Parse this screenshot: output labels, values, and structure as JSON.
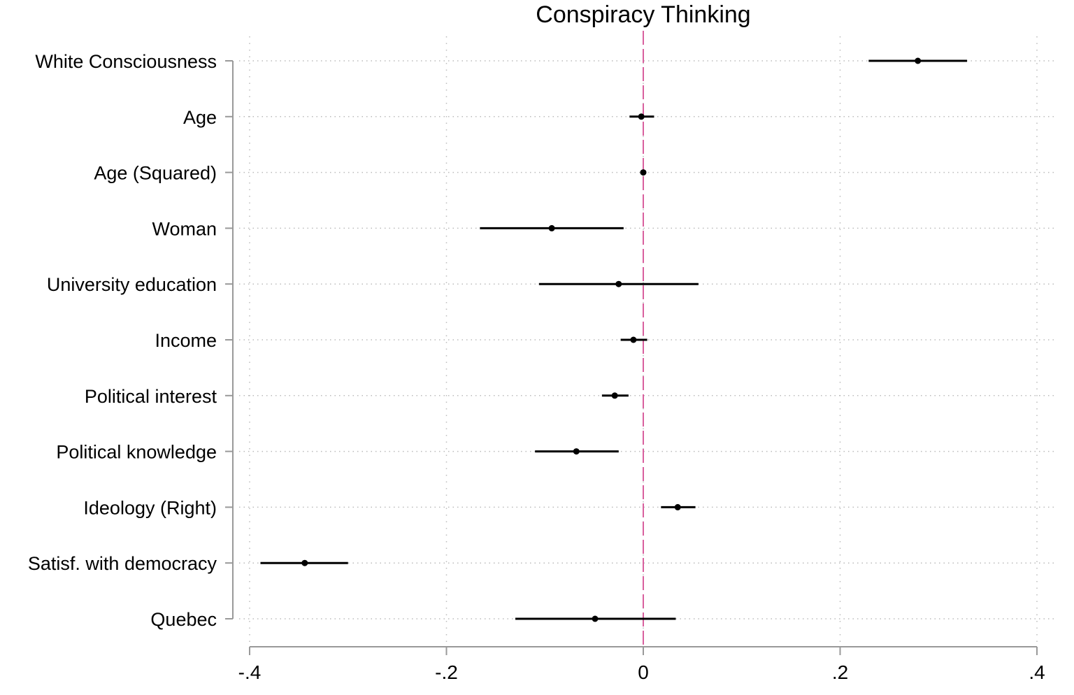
{
  "chart_data": {
    "type": "coefficient-plot",
    "title": "Conspiracy Thinking",
    "xlabel": "",
    "ylabel": "",
    "xlim": [
      -0.4,
      0.4
    ],
    "xticks": [
      -0.4,
      -0.2,
      0,
      0.2,
      0.4
    ],
    "xtick_labels": [
      "-.4",
      "-.2",
      "0",
      ".2",
      ".4"
    ],
    "grid": true,
    "reference_line": {
      "x": 0,
      "color": "#d9609e",
      "style": "dashed"
    },
    "marker_color": "#000000",
    "categories": [
      "White Consciousness",
      "Age",
      "Age (Squared)",
      "Woman",
      "University education",
      "Income",
      "Political interest",
      "Political knowledge",
      "Ideology (Right)",
      "Satisf. with democracy",
      "Quebec"
    ],
    "estimates": [
      0.279,
      -0.002,
      0.0,
      -0.093,
      -0.025,
      -0.01,
      -0.029,
      -0.068,
      0.035,
      -0.344,
      -0.049
    ],
    "ci_low": [
      0.229,
      -0.014,
      -0.001,
      -0.166,
      -0.106,
      -0.023,
      -0.042,
      -0.11,
      0.018,
      -0.389,
      -0.13
    ],
    "ci_high": [
      0.329,
      0.011,
      0.001,
      -0.02,
      0.056,
      0.004,
      -0.015,
      -0.025,
      0.053,
      -0.3,
      0.033
    ]
  }
}
